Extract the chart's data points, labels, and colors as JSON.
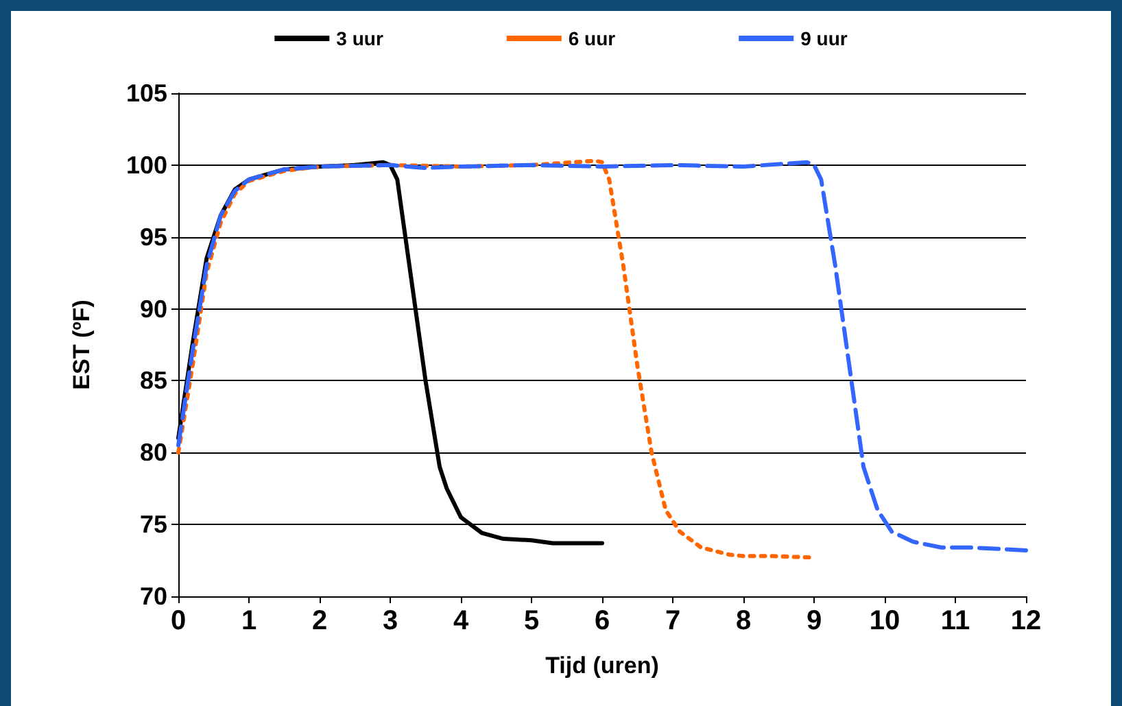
{
  "chart_data": {
    "type": "line",
    "xlabel": "Tijd (uren)",
    "ylabel": "EST (ºF)",
    "xlim": [
      0,
      12
    ],
    "xticks": [
      0,
      1,
      2,
      3,
      4,
      5,
      6,
      7,
      8,
      9,
      10,
      11,
      12
    ],
    "ylim": [
      70,
      105
    ],
    "yticks": [
      70,
      75,
      80,
      85,
      90,
      95,
      100,
      105
    ],
    "grid": "y",
    "legend": "top",
    "marker": "none",
    "series": [
      {
        "name": "3 uur",
        "color": "#000000",
        "line_style": "solid",
        "x": [
          0,
          0.2,
          0.4,
          0.6,
          0.8,
          1,
          1.5,
          2,
          2.5,
          2.9,
          3,
          3.1,
          3.3,
          3.5,
          3.7,
          3.8,
          4,
          4.3,
          4.6,
          5,
          5.3,
          6
        ],
        "values": [
          81,
          87.5,
          93.5,
          96.5,
          98.3,
          99,
          99.7,
          99.9,
          100,
          100.2,
          100,
          99,
          92,
          85,
          79,
          77.5,
          75.5,
          74.4,
          74,
          73.9,
          73.7,
          73.7
        ]
      },
      {
        "name": "6 uur",
        "color": "#ff6600",
        "line_style": "dotted",
        "x": [
          0,
          0.2,
          0.4,
          0.6,
          0.8,
          1,
          1.5,
          2,
          3,
          4,
          5,
          5.9,
          6,
          6.1,
          6.3,
          6.5,
          6.7,
          6.9,
          7.1,
          7.4,
          7.8,
          8,
          8.4,
          9
        ],
        "values": [
          80,
          86,
          92.5,
          96,
          98,
          98.9,
          99.6,
          99.9,
          100,
          99.9,
          100,
          100.3,
          100.2,
          99,
          93,
          86,
          80,
          76,
          74.5,
          73.4,
          72.9,
          72.8,
          72.8,
          72.7
        ]
      },
      {
        "name": "9 uur",
        "color": "#3366ff",
        "line_style": "dashed",
        "x": [
          0,
          0.2,
          0.4,
          0.6,
          0.8,
          1,
          1.5,
          2,
          3,
          3.5,
          4,
          5,
          6,
          7,
          8,
          8.9,
          9,
          9.1,
          9.3,
          9.5,
          9.7,
          9.9,
          10.1,
          10.4,
          10.8,
          11.2,
          12
        ],
        "values": [
          80.5,
          87,
          93,
          96.5,
          98.2,
          99,
          99.7,
          99.9,
          100,
          99.8,
          99.9,
          100,
          99.9,
          100,
          99.9,
          100.2,
          100,
          99,
          93,
          86,
          79,
          76,
          74.5,
          73.8,
          73.4,
          73.4,
          73.2
        ]
      }
    ]
  }
}
